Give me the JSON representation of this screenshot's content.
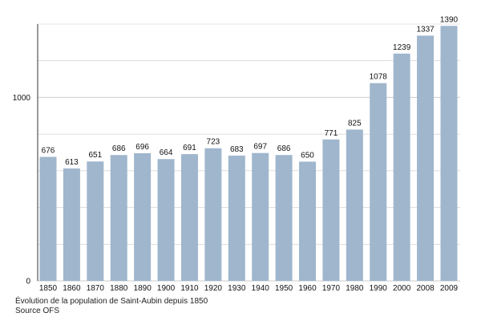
{
  "chart_data": {
    "type": "bar",
    "categories": [
      "1850",
      "1860",
      "1870",
      "1880",
      "1890",
      "1900",
      "1910",
      "1920",
      "1930",
      "1940",
      "1950",
      "1960",
      "1970",
      "1980",
      "1990",
      "2000",
      "2008",
      "2009"
    ],
    "values": [
      676,
      613,
      651,
      686,
      696,
      664,
      691,
      723,
      683,
      697,
      686,
      650,
      771,
      825,
      1078,
      1239,
      1337,
      1390
    ],
    "ylim": [
      0,
      1400
    ],
    "yticks": [
      0,
      1000
    ],
    "grid": true,
    "bar_color": "#9fb6cd",
    "grid_color": "#cccccc",
    "title": "",
    "xlabel": "",
    "ylabel": ""
  },
  "caption": {
    "line1": "Évolution de la population de Saint-Aubin depuis 1850",
    "line2": "Source OFS"
  }
}
